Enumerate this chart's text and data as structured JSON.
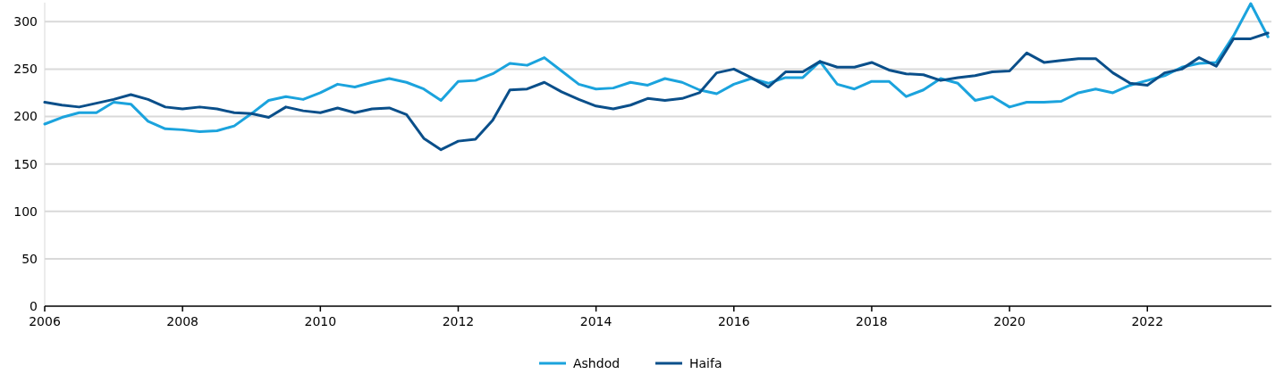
{
  "chart_data": {
    "type": "line",
    "x": [
      2006,
      2006.25,
      2006.5,
      2006.75,
      2007,
      2007.25,
      2007.5,
      2007.75,
      2008,
      2008.25,
      2008.5,
      2008.75,
      2009,
      2009.25,
      2009.5,
      2009.75,
      2010,
      2010.25,
      2010.5,
      2010.75,
      2011,
      2011.25,
      2011.5,
      2011.75,
      2012,
      2012.25,
      2012.5,
      2012.75,
      2013,
      2013.25,
      2013.5,
      2013.75,
      2014,
      2014.25,
      2014.5,
      2014.75,
      2015,
      2015.25,
      2015.5,
      2015.75,
      2016,
      2016.25,
      2016.5,
      2016.75,
      2017,
      2017.25,
      2017.5,
      2017.75,
      2018,
      2018.25,
      2018.5,
      2018.75,
      2019,
      2019.25,
      2019.5,
      2019.75,
      2020,
      2020.25,
      2020.5,
      2020.75,
      2021,
      2021.25,
      2021.5,
      2021.75,
      2022,
      2022.25,
      2022.5,
      2022.75,
      2023,
      2023.25,
      2023.5,
      2023.75
    ],
    "series": [
      {
        "name": "Ashdod",
        "color": "#1ba3dd",
        "values": [
          192,
          199,
          204,
          204,
          215,
          213,
          195,
          187,
          186,
          184,
          185,
          190,
          203,
          217,
          221,
          218,
          225,
          234,
          231,
          236,
          240,
          236,
          229,
          217,
          237,
          238,
          245,
          256,
          254,
          262,
          248,
          234,
          229,
          230,
          236,
          233,
          240,
          236,
          228,
          224,
          234,
          240,
          235,
          241,
          241,
          258,
          234,
          229,
          237,
          237,
          221,
          228,
          240,
          235,
          217,
          221,
          210,
          215,
          215,
          216,
          225,
          229,
          225,
          233,
          238,
          243,
          252,
          256,
          257,
          285,
          319,
          284
        ]
      },
      {
        "name": "Haifa",
        "color": "#0a4f8a",
        "values": [
          215,
          212,
          210,
          214,
          218,
          223,
          218,
          210,
          208,
          210,
          208,
          204,
          203,
          199,
          210,
          206,
          204,
          209,
          204,
          208,
          209,
          202,
          177,
          165,
          174,
          176,
          196,
          228,
          229,
          236,
          226,
          218,
          211,
          208,
          212,
          219,
          217,
          219,
          225,
          246,
          250,
          241,
          231,
          247,
          247,
          258,
          252,
          252,
          257,
          249,
          245,
          244,
          238,
          241,
          243,
          247,
          248,
          267,
          257,
          259,
          261,
          261,
          246,
          235,
          233,
          246,
          250,
          262,
          253,
          282,
          282,
          288
        ]
      }
    ],
    "xlim": [
      2006,
      2023.8
    ],
    "xticks": [
      2006,
      2008,
      2010,
      2012,
      2014,
      2016,
      2018,
      2020,
      2022
    ],
    "ylim": [
      0,
      320
    ],
    "yticks": [
      0,
      50,
      100,
      150,
      200,
      250,
      300
    ],
    "grid": "y",
    "legend": "bottom",
    "marker": "none",
    "line_style": "solid"
  }
}
